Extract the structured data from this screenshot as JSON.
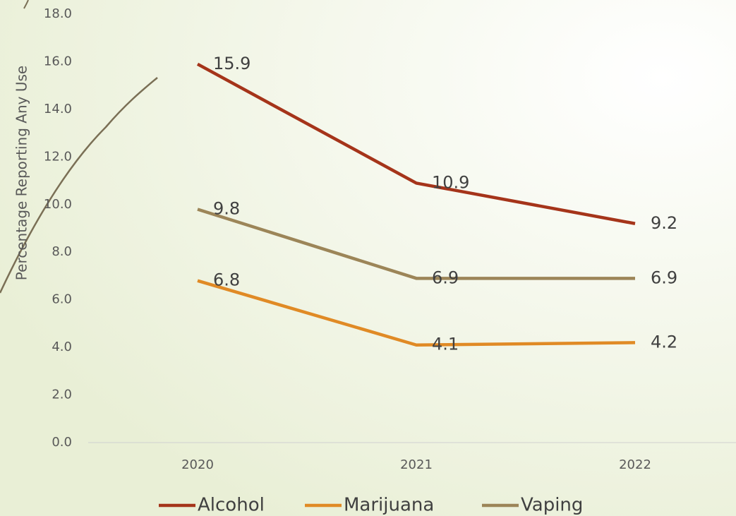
{
  "chart_data": {
    "type": "line",
    "y_label": "Percentage Reporting Any Use",
    "categories": [
      "2020",
      "2021",
      "2022"
    ],
    "series": [
      {
        "name": "Alcohol",
        "color": "#a5341a",
        "values": [
          15.9,
          10.9,
          9.2
        ]
      },
      {
        "name": "Marijuana",
        "color": "#e08a25",
        "values": [
          6.8,
          4.1,
          4.2
        ]
      },
      {
        "name": "Vaping",
        "color": "#9c8558",
        "values": [
          9.8,
          6.9,
          6.9
        ]
      }
    ],
    "ylim": [
      0,
      18
    ],
    "yticks": [
      {
        "value": 0,
        "label": "0.0"
      },
      {
        "value": 2,
        "label": "2.0"
      },
      {
        "value": 4,
        "label": "4.0"
      },
      {
        "value": 6,
        "label": "6.0"
      },
      {
        "value": 8,
        "label": "8.0"
      },
      {
        "value": 10,
        "label": "10.0"
      },
      {
        "value": 12,
        "label": "12.0"
      },
      {
        "value": 14,
        "label": "14.0"
      },
      {
        "value": 16,
        "label": "16.0"
      },
      {
        "value": 18,
        "label": "18.0"
      }
    ],
    "legend": "bottom"
  }
}
